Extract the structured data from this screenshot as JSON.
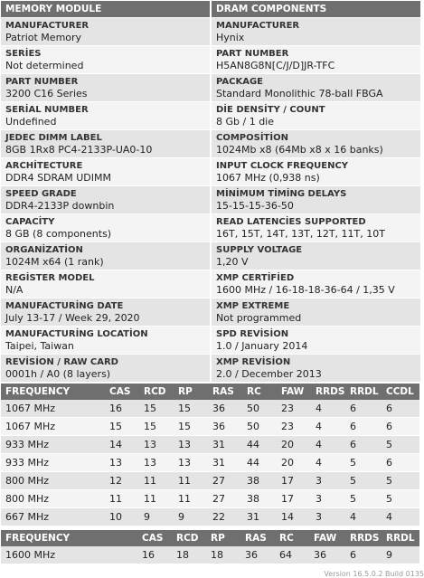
{
  "headers": {
    "left": "MEMORY MODULE",
    "right": "DRAM COMPONENTS"
  },
  "module": [
    {
      "label": "MANUFACTURER",
      "value": "Patriot Memory"
    },
    {
      "label": "SERİES",
      "value": "Not determined"
    },
    {
      "label": "PART NUMBER",
      "value": "3200 C16 Series"
    },
    {
      "label": "SERİAL NUMBER",
      "value": "Undefined"
    },
    {
      "label": "JEDEC DIMM LABEL",
      "value": "8GB 1Rx8 PC4-2133P-UA0-10"
    },
    {
      "label": "ARCHİTECTURE",
      "value": "DDR4 SDRAM UDIMM"
    },
    {
      "label": "SPEED GRADE",
      "value": "DDR4-2133P downbin"
    },
    {
      "label": "CAPACİTY",
      "value": "8 GB (8 components)"
    },
    {
      "label": "ORGANİZATİON",
      "value": "1024M x64 (1 rank)"
    },
    {
      "label": "REGİSTER MODEL",
      "value": "N/A"
    },
    {
      "label": "MANUFACTURİNG DATE",
      "value": "July 13-17 / Week 29, 2020"
    },
    {
      "label": "MANUFACTURİNG LOCATİON",
      "value": "Taipei, Taiwan"
    },
    {
      "label": "REVİSİON / RAW CARD",
      "value": "0001h / A0 (8 layers)"
    }
  ],
  "dram": [
    {
      "label": "MANUFACTURER",
      "value": "Hynix"
    },
    {
      "label": "PART NUMBER",
      "value": "H5AN8G8N[C/J/D]JR-TFC"
    },
    {
      "label": "PACKAGE",
      "value": "Standard Monolithic 78-ball FBGA"
    },
    {
      "label": "DİE DENSİTY / COUNT",
      "value": "8 Gb / 1 die"
    },
    {
      "label": "COMPOSİTİON",
      "value": "1024Mb x8 (64Mb x8 x 16 banks)"
    },
    {
      "label": "INPUT CLOCK FREQUENCY",
      "value": "1067 MHz (0,938 ns)"
    },
    {
      "label": "MİNİMUM TİMİNG DELAYS",
      "value": "15-15-15-36-50"
    },
    {
      "label": "READ LATENCİES SUPPORTED",
      "value": "16T, 15T, 14T, 13T, 12T, 11T, 10T"
    },
    {
      "label": "SUPPLY VOLTAGE",
      "value": "1,20 V"
    },
    {
      "label": "XMP CERTİFİED",
      "value": "1600 MHz / 16-18-18-36-64 / 1,35 V"
    },
    {
      "label": "XMP EXTREME",
      "value": "Not programmed"
    },
    {
      "label": "SPD REVİSİON",
      "value": "1.0 / January 2014"
    },
    {
      "label": "XMP REVİSİON",
      "value": "2.0 / December 2013"
    }
  ],
  "timings": {
    "columns": [
      "FREQUENCY",
      "CAS",
      "RCD",
      "RP",
      "RAS",
      "RC",
      "FAW",
      "RRDS",
      "RRDL",
      "CCDL"
    ],
    "rows": [
      [
        "1067 MHz",
        "16",
        "15",
        "15",
        "36",
        "50",
        "23",
        "4",
        "6",
        "6"
      ],
      [
        "1067 MHz",
        "15",
        "15",
        "15",
        "36",
        "50",
        "23",
        "4",
        "6",
        "6"
      ],
      [
        "933 MHz",
        "14",
        "13",
        "13",
        "31",
        "44",
        "20",
        "4",
        "6",
        "5"
      ],
      [
        "933 MHz",
        "13",
        "13",
        "13",
        "31",
        "44",
        "20",
        "4",
        "5",
        "6"
      ],
      [
        "800 MHz",
        "12",
        "11",
        "11",
        "27",
        "38",
        "17",
        "3",
        "5",
        "5"
      ],
      [
        "800 MHz",
        "11",
        "11",
        "11",
        "27",
        "38",
        "17",
        "3",
        "5",
        "5"
      ],
      [
        "667 MHz",
        "10",
        "9",
        "9",
        "22",
        "31",
        "14",
        "3",
        "4",
        "4"
      ]
    ]
  },
  "xmp": {
    "columns": [
      "FREQUENCY",
      "CAS",
      "RCD",
      "RP",
      "RAS",
      "RC",
      "FAW",
      "RRDS",
      "RRDL"
    ],
    "rows": [
      [
        "1600 MHz",
        "16",
        "18",
        "18",
        "36",
        "64",
        "36",
        "6",
        "9"
      ]
    ]
  },
  "footer": "Version 16.5.0.2 Build 0135"
}
